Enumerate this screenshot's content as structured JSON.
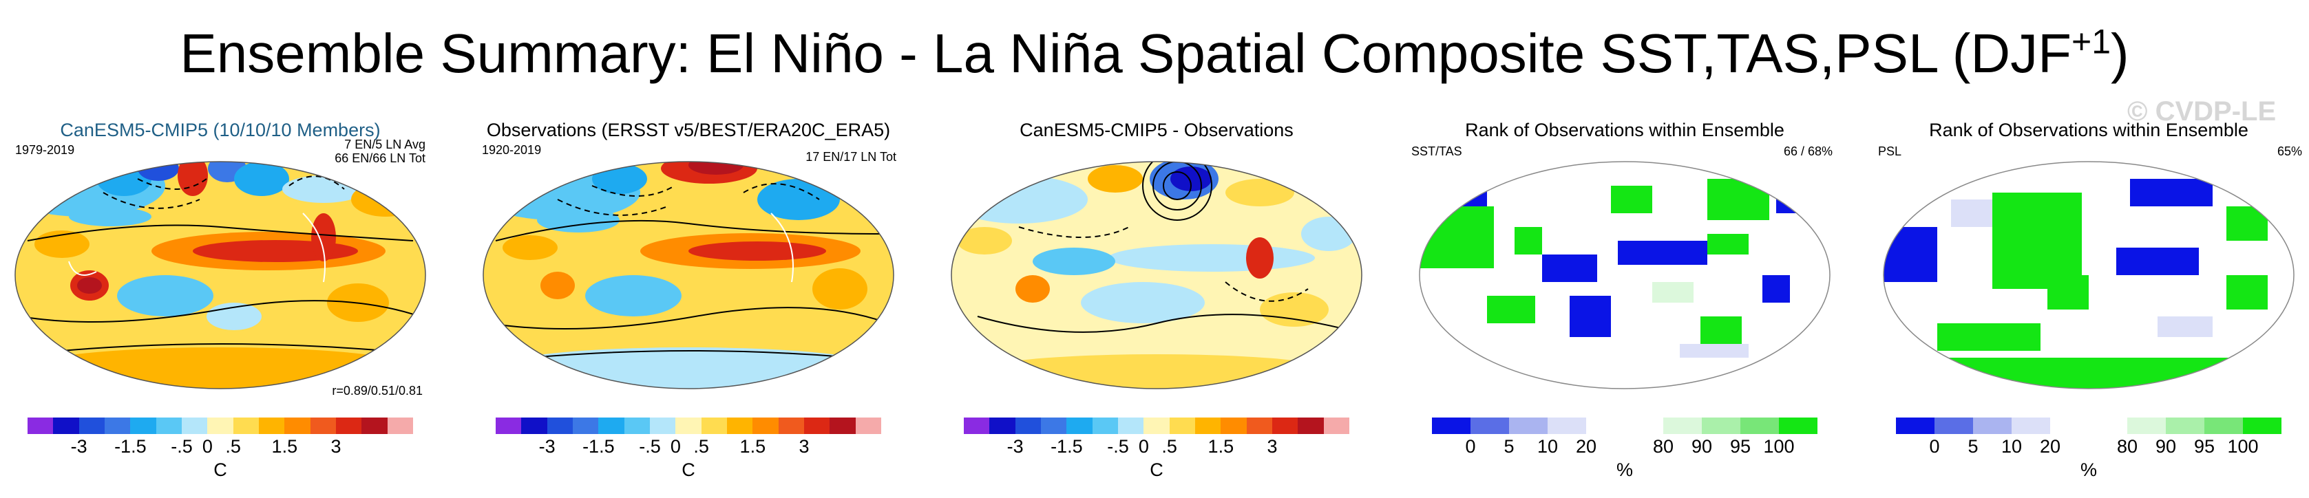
{
  "title": "Ensemble Summary: El Niño - La Niña Spatial Composite SST,TAS,PSL (DJF",
  "title_sup": "+1",
  "watermark": "© CVDP-LE",
  "panels": [
    {
      "title": "CanESM5-CMIP5 (10/10/10 Members)",
      "title_color": "#1f5f86",
      "ann_left": "1979-2019",
      "ann_right_1": "7 EN/5 LN Avg",
      "ann_right_2": "66 EN/66 LN Tot",
      "ann_bottom": "r=0.89/0.51/0.81",
      "colorbar": "temperature",
      "ticks": [
        "-3",
        "-1.5",
        "-.5",
        "0",
        ".5",
        "1.5",
        "3"
      ],
      "unit": "C"
    },
    {
      "title": "Observations (ERSST v5/BEST/ERA20C_ERA5)",
      "ann_left": "1920-2019",
      "ann_right_1": "17 EN/17 LN Tot",
      "colorbar": "temperature",
      "ticks": [
        "-3",
        "-1.5",
        "-.5",
        "0",
        ".5",
        "1.5",
        "3"
      ],
      "unit": "C"
    },
    {
      "title": "CanESM5-CMIP5 - Observations",
      "colorbar": "temperature",
      "ticks": [
        "-3",
        "-1.5",
        "-.5",
        "0",
        ".5",
        "1.5",
        "3"
      ],
      "unit": "C"
    },
    {
      "title": "Rank of Observations within Ensemble",
      "ann_left": "SST/TAS",
      "ann_right_1": "66 /  68%",
      "colorbar": "rank",
      "ticks": [
        "0",
        "5",
        "10",
        "20",
        "80",
        "90",
        "95",
        "100"
      ],
      "unit": "%"
    },
    {
      "title": "Rank of Observations within Ensemble",
      "ann_left": "PSL",
      "ann_right_1": "65%",
      "colorbar": "rank",
      "ticks": [
        "0",
        "5",
        "10",
        "20",
        "80",
        "90",
        "95",
        "100"
      ],
      "unit": "%"
    }
  ],
  "colors": {
    "temperature": [
      "#8a2be2",
      "#1010c8",
      "#2050dc",
      "#3c78e6",
      "#1eaaf0",
      "#5ac8f5",
      "#b4e6fa",
      "#fff5b4",
      "#ffdc50",
      "#ffb400",
      "#ff8c00",
      "#f05a1e",
      "#dc2814",
      "#b4141e",
      "#f5aaaa"
    ],
    "rank": [
      "#0a14e6",
      "#5a6ee6",
      "#aab4f0",
      "#dce0f8",
      "#ffffff",
      "#ffffff",
      "#dcf8dc",
      "#aaf0aa",
      "#78e678",
      "#14e614"
    ]
  }
}
